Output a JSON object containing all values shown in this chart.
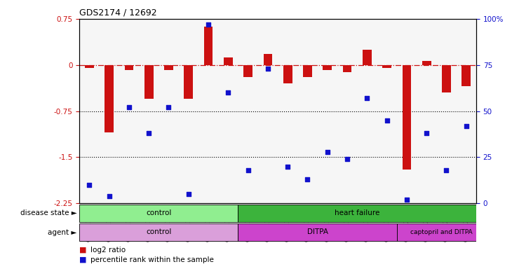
{
  "title": "GDS2174 / 12692",
  "samples": [
    "GSM111772",
    "GSM111823",
    "GSM111824",
    "GSM111825",
    "GSM111826",
    "GSM111827",
    "GSM111828",
    "GSM111829",
    "GSM111861",
    "GSM111863",
    "GSM111864",
    "GSM111865",
    "GSM111866",
    "GSM111867",
    "GSM111869",
    "GSM111870",
    "GSM112038",
    "GSM112039",
    "GSM112040",
    "GSM112041"
  ],
  "log2_ratio": [
    -0.05,
    -1.1,
    -0.08,
    -0.55,
    -0.08,
    -0.55,
    0.62,
    0.12,
    -0.2,
    0.18,
    -0.3,
    -0.2,
    -0.08,
    -0.12,
    0.25,
    -0.05,
    -1.7,
    0.07,
    -0.45,
    -0.35
  ],
  "percentile": [
    10,
    4,
    52,
    38,
    52,
    5,
    97,
    60,
    18,
    73,
    20,
    13,
    28,
    24,
    57,
    45,
    2,
    38,
    18,
    42
  ],
  "ylim_left": [
    -2.25,
    0.75
  ],
  "ylim_right": [
    0,
    100
  ],
  "bar_color": "#cc1111",
  "scatter_color": "#1111cc",
  "ref_line_color": "#cc1111",
  "dotted_line_color": "#000000",
  "control_color": "#90ee90",
  "hf_color": "#3cb33c",
  "agent_purple": "#da9fda",
  "agent_pink": "#cc44cc"
}
